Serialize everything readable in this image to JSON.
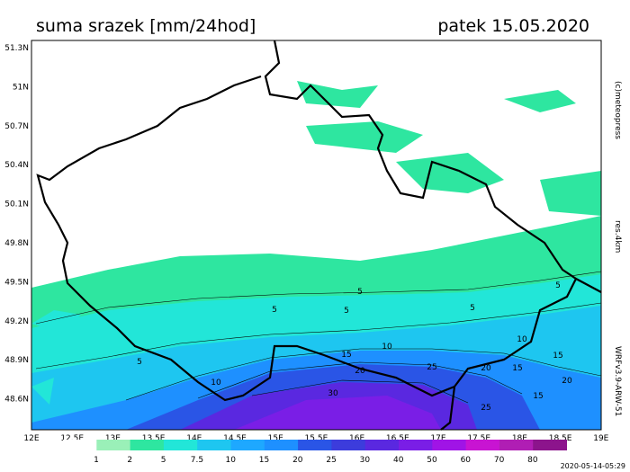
{
  "header": {
    "title": "suma srazek [mm/24hod]",
    "date": "patek 15.05.2020"
  },
  "lat_labels": [
    "51.3N",
    "51N",
    "50.7N",
    "50.4N",
    "50.1N",
    "49.8N",
    "49.5N",
    "49.2N",
    "48.9N",
    "48.6N"
  ],
  "lon_labels": [
    "12E",
    "12.5E",
    "13E",
    "13.5E",
    "14E",
    "14.5E",
    "15E",
    "15.5E",
    "16E",
    "16.5E",
    "17E",
    "17.5E",
    "18E",
    "18.5E",
    "19E"
  ],
  "legend_labels": [
    "1",
    "2",
    "5",
    "7.5",
    "10",
    "15",
    "20",
    "25",
    "30",
    "40",
    "50",
    "60",
    "70",
    "80"
  ],
  "side": {
    "copyright": "(c)meteopress",
    "resolution": "res.4km",
    "model": "WRFv3.9-ARW-51"
  },
  "contour_labels": [
    "5",
    "5",
    "5",
    "5",
    "5",
    "5",
    "10",
    "10",
    "10",
    "15",
    "15",
    "15",
    "15",
    "20",
    "20",
    "20",
    "25",
    "25",
    "30"
  ],
  "footer": {
    "timestamp": "2020-05-14-05:29"
  }
}
